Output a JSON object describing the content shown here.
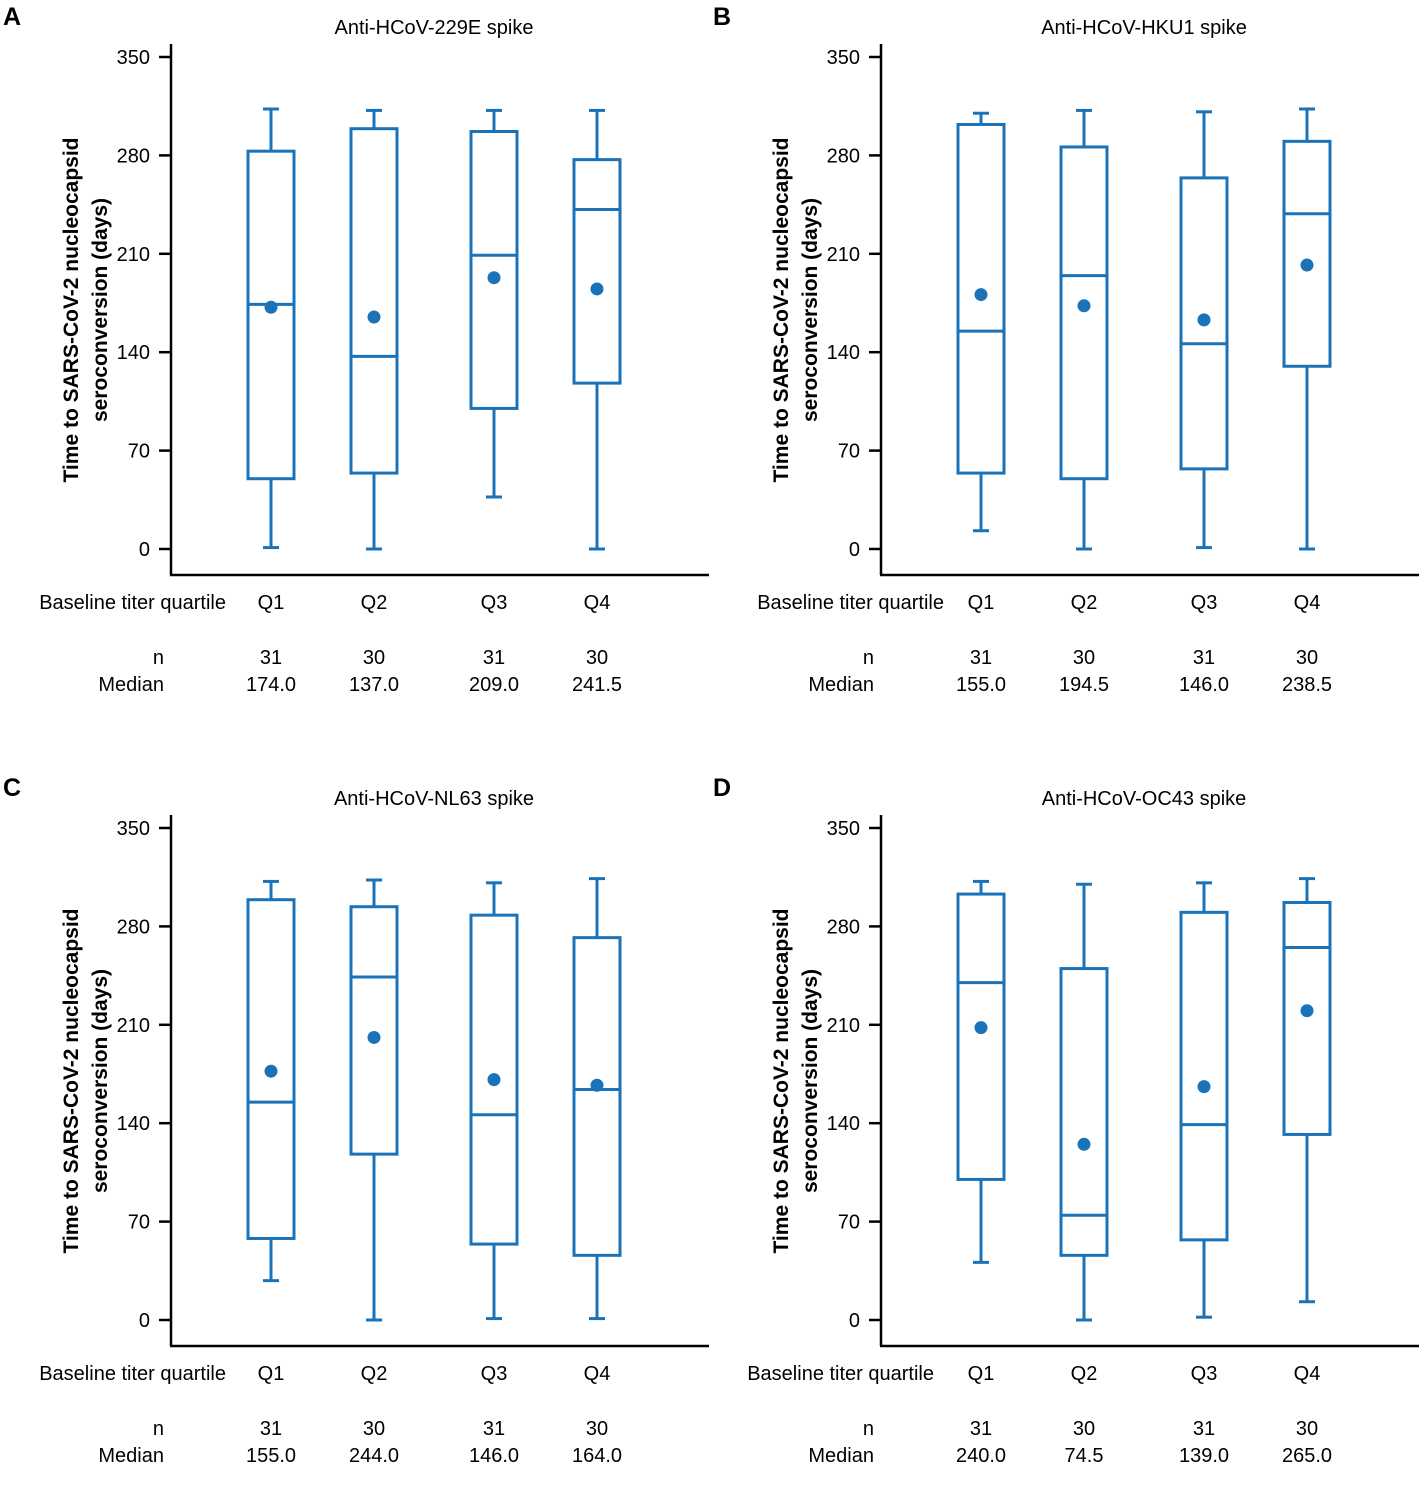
{
  "colors": {
    "series": "#1a73b8",
    "axis": "#000000"
  },
  "shared": {
    "row_label_quartile": "Baseline titer quartile",
    "row_label_n": "n",
    "row_label_median": "Median",
    "y_label_line1": "Time to SARS-CoV-2 nucleocapsid",
    "y_label_line2": "seroconversion (days)"
  },
  "chart_data": [
    {
      "panel": "A",
      "type": "box",
      "title": "Anti-HCoV-229E spike",
      "xlabel": "Baseline titer quartile",
      "ylabel": "Time to SARS-CoV-2 nucleocapsid seroconversion (days)",
      "ylim": [
        0,
        350
      ],
      "yticks": [
        "0",
        "70",
        "140",
        "210",
        "280",
        "350"
      ],
      "categories": [
        "Q1",
        "Q2",
        "Q3",
        "Q4"
      ],
      "boxes": [
        {
          "category": "Q1",
          "whisker_low": 1,
          "q1": 50,
          "median": 174.0,
          "q3": 283,
          "whisker_high": 313,
          "mean": 172
        },
        {
          "category": "Q2",
          "whisker_low": 0,
          "q1": 54,
          "median": 137.0,
          "q3": 299,
          "whisker_high": 312,
          "mean": 165
        },
        {
          "category": "Q3",
          "whisker_low": 37,
          "q1": 100,
          "median": 209.0,
          "q3": 297,
          "whisker_high": 312,
          "mean": 193
        },
        {
          "category": "Q4",
          "whisker_low": 0,
          "q1": 118,
          "median": 241.5,
          "q3": 277,
          "whisker_high": 312,
          "mean": 185
        }
      ],
      "n": [
        "31",
        "30",
        "31",
        "30"
      ],
      "median_labels": [
        "174.0",
        "137.0",
        "209.0",
        "241.5"
      ]
    },
    {
      "panel": "B",
      "type": "box",
      "title": "Anti-HCoV-HKU1 spike",
      "xlabel": "Baseline titer quartile",
      "ylabel": "Time to SARS-CoV-2 nucleocapsid seroconversion (days)",
      "ylim": [
        0,
        350
      ],
      "yticks": [
        "0",
        "70",
        "140",
        "210",
        "280",
        "350"
      ],
      "categories": [
        "Q1",
        "Q2",
        "Q3",
        "Q4"
      ],
      "boxes": [
        {
          "category": "Q1",
          "whisker_low": 13,
          "q1": 54,
          "median": 155.0,
          "q3": 302,
          "whisker_high": 310,
          "mean": 181
        },
        {
          "category": "Q2",
          "whisker_low": 0,
          "q1": 50,
          "median": 194.5,
          "q3": 286,
          "whisker_high": 312,
          "mean": 173
        },
        {
          "category": "Q3",
          "whisker_low": 1,
          "q1": 57,
          "median": 146.0,
          "q3": 264,
          "whisker_high": 311,
          "mean": 163
        },
        {
          "category": "Q4",
          "whisker_low": 0,
          "q1": 130,
          "median": 238.5,
          "q3": 290,
          "whisker_high": 313,
          "mean": 202
        }
      ],
      "n": [
        "31",
        "30",
        "31",
        "30"
      ],
      "median_labels": [
        "155.0",
        "194.5",
        "146.0",
        "238.5"
      ]
    },
    {
      "panel": "C",
      "type": "box",
      "title": "Anti-HCoV-NL63 spike",
      "xlabel": "Baseline titer quartile",
      "ylabel": "Time to SARS-CoV-2 nucleocapsid seroconversion (days)",
      "ylim": [
        0,
        350
      ],
      "yticks": [
        "0",
        "70",
        "140",
        "210",
        "280",
        "350"
      ],
      "categories": [
        "Q1",
        "Q2",
        "Q3",
        "Q4"
      ],
      "boxes": [
        {
          "category": "Q1",
          "whisker_low": 28,
          "q1": 58,
          "median": 155.0,
          "q3": 299,
          "whisker_high": 312,
          "mean": 177
        },
        {
          "category": "Q2",
          "whisker_low": 0,
          "q1": 118,
          "median": 244.0,
          "q3": 294,
          "whisker_high": 313,
          "mean": 201
        },
        {
          "category": "Q3",
          "whisker_low": 1,
          "q1": 54,
          "median": 146.0,
          "q3": 288,
          "whisker_high": 311,
          "mean": 171
        },
        {
          "category": "Q4",
          "whisker_low": 1,
          "q1": 46,
          "median": 164.0,
          "q3": 272,
          "whisker_high": 314,
          "mean": 167
        }
      ],
      "n": [
        "31",
        "30",
        "31",
        "30"
      ],
      "median_labels": [
        "155.0",
        "244.0",
        "146.0",
        "164.0"
      ]
    },
    {
      "panel": "D",
      "type": "box",
      "title": "Anti-HCoV-OC43 spike",
      "xlabel": "Baseline titer quartile",
      "ylabel": "Time to SARS-CoV-2 nucleocapsid seroconversion (days)",
      "ylim": [
        0,
        350
      ],
      "yticks": [
        "0",
        "70",
        "140",
        "210",
        "280",
        "350"
      ],
      "categories": [
        "Q1",
        "Q2",
        "Q3",
        "Q4"
      ],
      "boxes": [
        {
          "category": "Q1",
          "whisker_low": 41,
          "q1": 100,
          "median": 240.0,
          "q3": 303,
          "whisker_high": 312,
          "mean": 208
        },
        {
          "category": "Q2",
          "whisker_low": 0,
          "q1": 46,
          "median": 74.5,
          "q3": 250,
          "whisker_high": 310,
          "mean": 125
        },
        {
          "category": "Q3",
          "whisker_low": 2,
          "q1": 57,
          "median": 139.0,
          "q3": 290,
          "whisker_high": 311,
          "mean": 166
        },
        {
          "category": "Q4",
          "whisker_low": 13,
          "q1": 132,
          "median": 265.0,
          "q3": 297,
          "whisker_high": 314,
          "mean": 220
        }
      ],
      "n": [
        "31",
        "30",
        "31",
        "30"
      ],
      "median_labels": [
        "240.0",
        "74.5",
        "139.0",
        "265.0"
      ]
    }
  ]
}
